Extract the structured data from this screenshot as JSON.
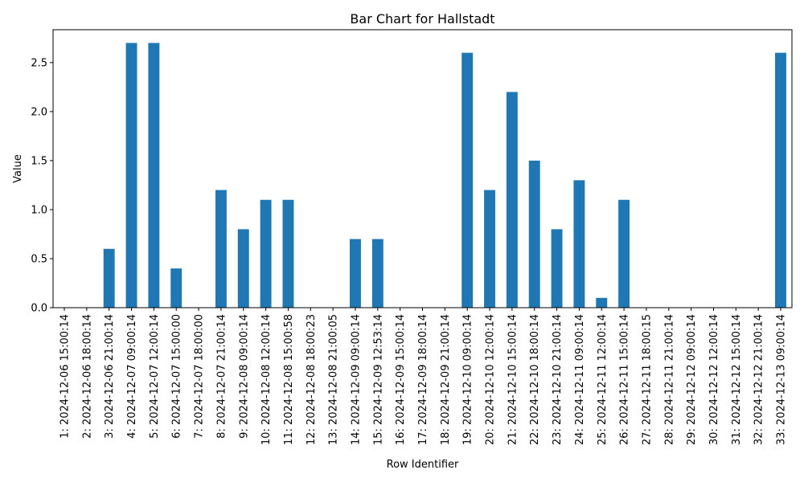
{
  "chart_data": {
    "type": "bar",
    "title": "Bar Chart for Hallstadt",
    "xlabel": "Row Identifier",
    "ylabel": "Value",
    "ylim": [
      0,
      2.835
    ],
    "yticks": [
      0.0,
      0.5,
      1.0,
      1.5,
      2.0,
      2.5
    ],
    "ytick_labels": [
      "0.0",
      "0.5",
      "1.0",
      "1.5",
      "2.0",
      "2.5"
    ],
    "grid": false,
    "legend": "none",
    "bar_color": "#1f77b4",
    "categories": [
      "1: 2024-12-06 15:00:14",
      "2: 2024-12-06 18:00:14",
      "3: 2024-12-06 21:00:14",
      "4: 2024-12-07 09:00:14",
      "5: 2024-12-07 12:00:14",
      "6: 2024-12-07 15:00:00",
      "7: 2024-12-07 18:00:00",
      "8: 2024-12-07 21:00:14",
      "9: 2024-12-08 09:00:14",
      "10: 2024-12-08 12:00:14",
      "11: 2024-12-08 15:00:58",
      "12: 2024-12-08 18:00:23",
      "13: 2024-12-08 21:00:05",
      "14: 2024-12-09 09:00:14",
      "15: 2024-12-09 12:53:14",
      "16: 2024-12-09 15:00:14",
      "17: 2024-12-09 18:00:14",
      "18: 2024-12-09 21:00:14",
      "19: 2024-12-10 09:00:14",
      "20: 2024-12-10 12:00:14",
      "21: 2024-12-10 15:00:14",
      "22: 2024-12-10 18:00:14",
      "23: 2024-12-10 21:00:14",
      "24: 2024-12-11 09:00:14",
      "25: 2024-12-11 12:00:14",
      "26: 2024-12-11 15:00:14",
      "27: 2024-12-11 18:00:15",
      "28: 2024-12-11 21:00:14",
      "29: 2024-12-12 09:00:14",
      "30: 2024-12-12 12:00:14",
      "31: 2024-12-12 15:00:14",
      "32: 2024-12-12 21:00:14",
      "33: 2024-12-13 09:00:14"
    ],
    "values": [
      0,
      0,
      0.6,
      2.7,
      2.7,
      0.4,
      0,
      1.2,
      0.8,
      1.1,
      1.1,
      0,
      0,
      0.7,
      0.7,
      0,
      0,
      0,
      2.6,
      1.2,
      2.2,
      1.5,
      0.8,
      1.3,
      0.1,
      1.1,
      0,
      0,
      0,
      0,
      0,
      0,
      2.6
    ]
  }
}
